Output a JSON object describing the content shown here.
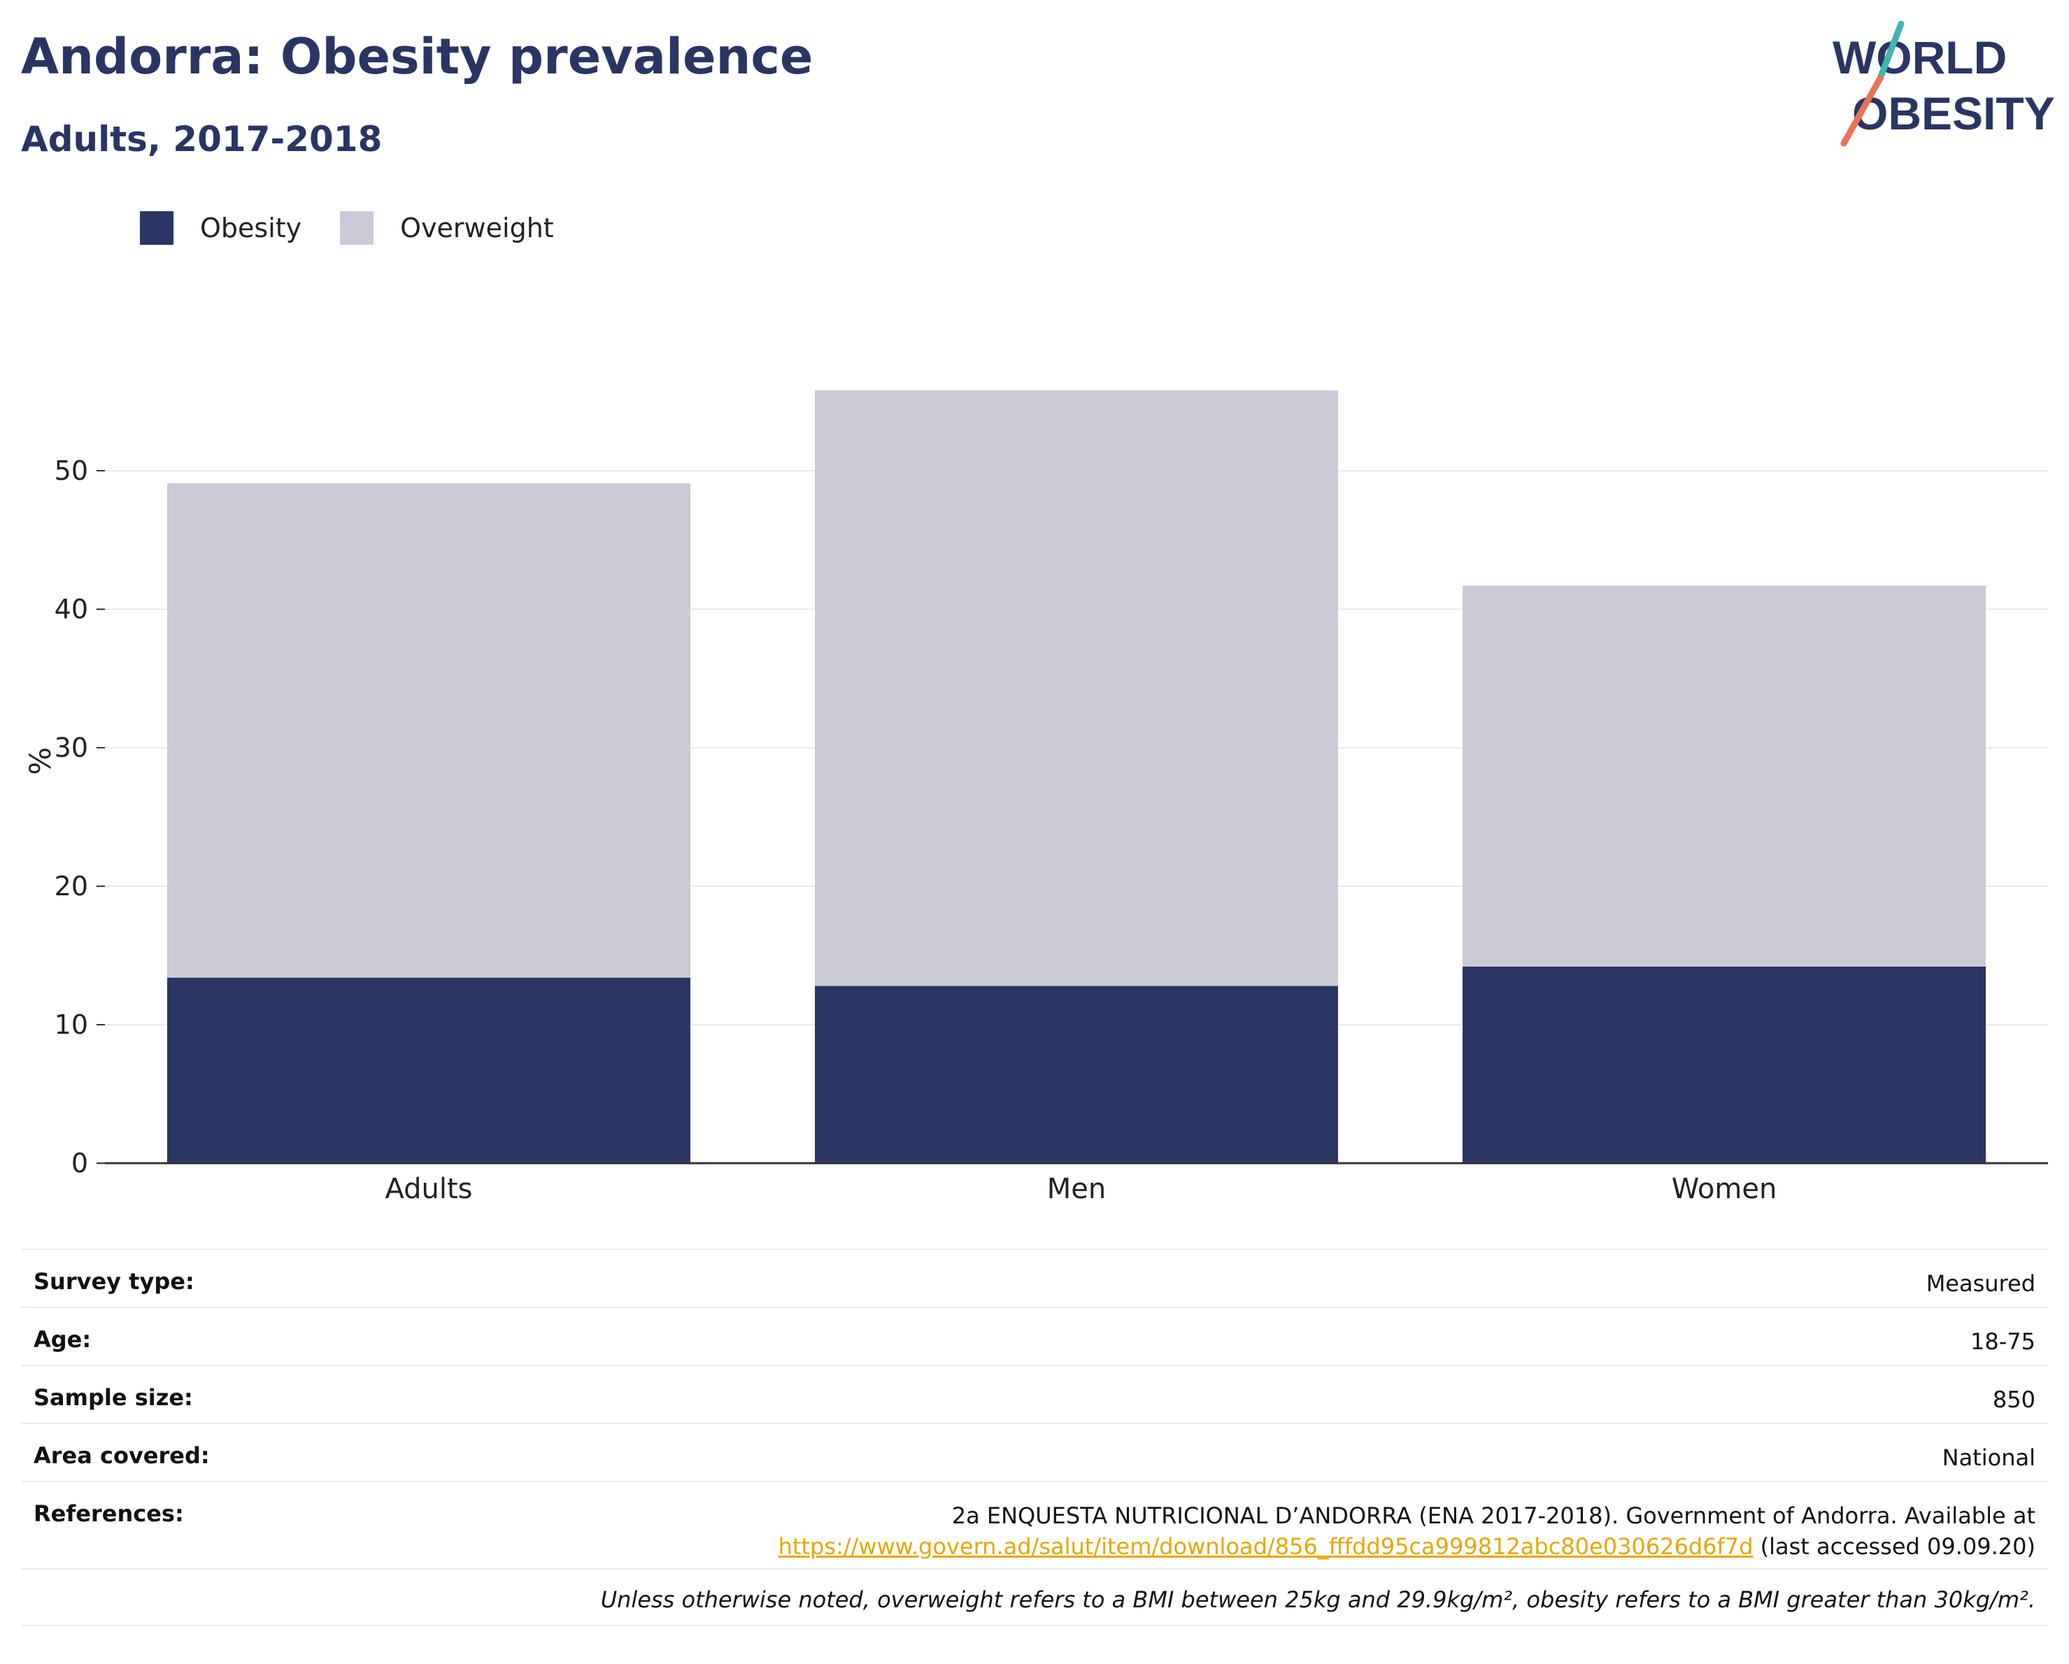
{
  "header": {
    "title": "Andorra: Obesity prevalence",
    "subtitle": "Adults, 2017-2018"
  },
  "logo": {
    "line1": "WORLD",
    "line2": "OBESITY",
    "slash_colors": [
      "#3fb5b0",
      "#e8735a"
    ]
  },
  "legend": [
    {
      "label": "Obesity",
      "color": "#2a3663"
    },
    {
      "label": "Overweight",
      "color": "#cacbd7"
    }
  ],
  "chart_data": {
    "type": "bar",
    "stacked": true,
    "categories": [
      "Adults",
      "Men",
      "Women"
    ],
    "series": [
      {
        "name": "Obesity",
        "color": "#2a3663",
        "values": [
          13.4,
          12.8,
          14.2
        ]
      },
      {
        "name": "Overweight",
        "color": "#cacbd7",
        "values": [
          35.7,
          43.0,
          27.5
        ]
      }
    ],
    "ylabel": "%",
    "xlabel": "",
    "ylim": [
      0,
      55
    ],
    "yticks": [
      0,
      10,
      20,
      30,
      40,
      50
    ],
    "grid": true,
    "legend_position": "top-left"
  },
  "info": {
    "survey_type": {
      "label": "Survey type:",
      "value": "Measured"
    },
    "age": {
      "label": "Age:",
      "value": "18-75"
    },
    "sample_size": {
      "label": "Sample size:",
      "value": "850"
    },
    "area": {
      "label": "Area covered:",
      "value": "National"
    },
    "references": {
      "label": "References:",
      "text": "2a ENQUESTA NUTRICIONAL D’ANDORRA (ENA 2017-2018). Government of Andorra. Available at",
      "link": "https://www.govern.ad/salut/item/download/856_fffdd95ca999812abc80e030626d6f7d",
      "suffix": " (last accessed 09.09.20)"
    },
    "note": "Unless otherwise noted, overweight refers to a BMI between 25kg and 29.9kg/m², obesity refers to a BMI greater than 30kg/m²."
  }
}
